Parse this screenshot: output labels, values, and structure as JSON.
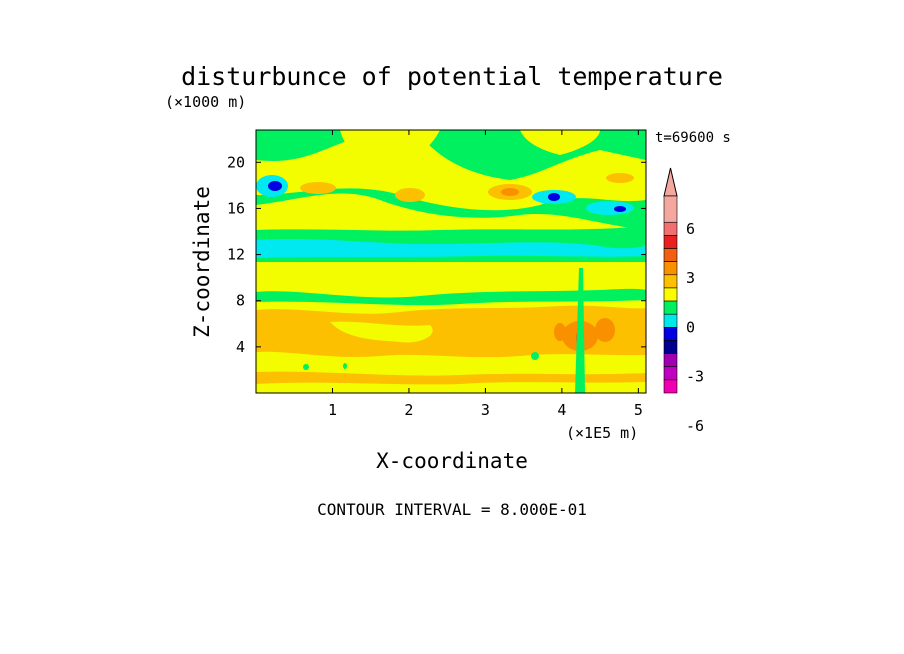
{
  "chart_data": {
    "type": "heatmap",
    "title": "disturbunce of potential temperature",
    "xlabel": "X-coordinate",
    "ylabel": "Z-coordinate",
    "x_unit": "(×1E5 m)",
    "y_unit": "(×1000 m)",
    "time_label": "t=69600 s",
    "footer": "CONTOUR INTERVAL = 8.000E-01",
    "xlim": [
      0,
      5.1
    ],
    "ylim": [
      0,
      22.8
    ],
    "x_ticks": [
      "1",
      "2",
      "3",
      "4",
      "5"
    ],
    "y_ticks": [
      "4",
      "8",
      "12",
      "16",
      "20"
    ],
    "colorbar": {
      "labels": [
        "6",
        "3",
        "0",
        "-3",
        "-6"
      ],
      "levels": [
        {
          "lo": 8.0,
          "hi": null,
          "color": "#f4a79f"
        },
        {
          "lo": 6.4,
          "hi": 8.0,
          "color": "#f4a79f"
        },
        {
          "lo": 5.6,
          "hi": 6.4,
          "color": "#f07070"
        },
        {
          "lo": 4.8,
          "hi": 5.6,
          "color": "#e82020"
        },
        {
          "lo": 4.0,
          "hi": 4.8,
          "color": "#f06010"
        },
        {
          "lo": 3.2,
          "hi": 4.0,
          "color": "#f89000"
        },
        {
          "lo": 2.4,
          "hi": 3.2,
          "color": "#fcc000"
        },
        {
          "lo": 1.6,
          "hi": 2.4,
          "color": "#fcfc00"
        },
        {
          "lo": 0.8,
          "hi": 1.6,
          "color": "#00f060"
        },
        {
          "lo": 0.0,
          "hi": 0.8,
          "color": "#00e8e8"
        },
        {
          "lo": -0.8,
          "hi": 0.0,
          "color": "#0000e0"
        },
        {
          "lo": -1.6,
          "hi": -0.8,
          "color": "#000090"
        },
        {
          "lo": -2.4,
          "hi": -1.6,
          "color": "#a000b0"
        },
        {
          "lo": -3.2,
          "hi": -2.4,
          "color": "#c000c0"
        },
        {
          "lo": -4.0,
          "hi": -3.2,
          "color": "#f000b0"
        }
      ]
    },
    "regions": [
      {
        "x": [
          0,
          5.1
        ],
        "y": [
          0,
          22.8
        ],
        "value": 1.2,
        "color": "#f4fc00"
      },
      {
        "x": [
          0,
          5.1
        ],
        "y": [
          12.8,
          15.2
        ],
        "value": 0.4,
        "color": "#00f060"
      },
      {
        "x": [
          0,
          5.1
        ],
        "y": [
          11.5,
          13.0
        ],
        "value": -0.3,
        "color": "#00e8f0"
      },
      {
        "x": [
          0,
          5.1
        ],
        "y": [
          2.5,
          7.5
        ],
        "value": 2.6,
        "color": "#fcc000"
      },
      {
        "x": [
          0,
          5.1
        ],
        "y": [
          8.0,
          9.5
        ],
        "value": 0.4,
        "color": "#00f060"
      }
    ]
  }
}
